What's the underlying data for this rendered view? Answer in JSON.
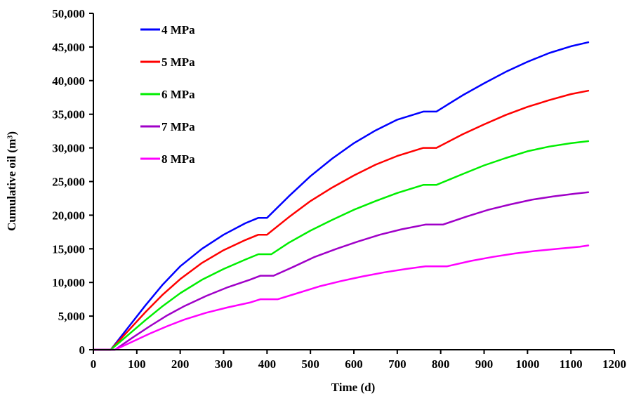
{
  "chart_data": {
    "type": "line",
    "title": "",
    "xlabel": "Time (d)",
    "ylabel": "Cumulative oil (m³)",
    "xlim": [
      0,
      1200
    ],
    "ylim": [
      0,
      50000
    ],
    "xticks": [
      0,
      100,
      200,
      300,
      400,
      500,
      600,
      700,
      800,
      900,
      1000,
      1100,
      1200
    ],
    "yticks": [
      0,
      5000,
      10000,
      15000,
      20000,
      25000,
      30000,
      35000,
      40000,
      45000,
      50000
    ],
    "xtick_labels": [
      "0",
      "100",
      "200",
      "300",
      "400",
      "500",
      "600",
      "700",
      "800",
      "900",
      "1000",
      "1100",
      "1200"
    ],
    "ytick_labels": [
      "0",
      "5,000",
      "10,000",
      "15,000",
      "20,000",
      "25,000",
      "30,000",
      "35,000",
      "40,000",
      "45,000",
      "50,000"
    ],
    "grid": false,
    "legend_position": "top-left",
    "series": [
      {
        "name": "4 MPa",
        "color": "#0000ff",
        "x": [
          0,
          30,
          40,
          80,
          120,
          160,
          200,
          250,
          300,
          350,
          380,
          400,
          450,
          500,
          550,
          600,
          650,
          700,
          760,
          790,
          850,
          900,
          950,
          1000,
          1050,
          1100,
          1140
        ],
        "y": [
          0,
          0,
          0,
          3300,
          6600,
          9700,
          12400,
          15000,
          17100,
          18800,
          19600,
          19600,
          22800,
          25800,
          28400,
          30700,
          32600,
          34200,
          35400,
          35400,
          37800,
          39600,
          41300,
          42800,
          44100,
          45100,
          45700
        ]
      },
      {
        "name": "5 MPa",
        "color": "#ff0000",
        "x": [
          0,
          30,
          40,
          80,
          120,
          160,
          200,
          250,
          300,
          350,
          380,
          400,
          450,
          500,
          550,
          600,
          650,
          700,
          760,
          790,
          850,
          900,
          950,
          1000,
          1050,
          1100,
          1140
        ],
        "y": [
          0,
          0,
          0,
          2800,
          5600,
          8200,
          10500,
          12900,
          14800,
          16300,
          17100,
          17100,
          19700,
          22100,
          24100,
          25900,
          27500,
          28800,
          30000,
          30000,
          32000,
          33500,
          34900,
          36100,
          37100,
          38000,
          38500
        ]
      },
      {
        "name": "6 MPa",
        "color": "#00ee00",
        "x": [
          0,
          30,
          40,
          80,
          120,
          160,
          200,
          250,
          300,
          350,
          380,
          410,
          450,
          500,
          550,
          600,
          650,
          700,
          760,
          790,
          850,
          900,
          950,
          1000,
          1050,
          1100,
          1140
        ],
        "y": [
          0,
          0,
          0,
          2200,
          4400,
          6500,
          8400,
          10400,
          12000,
          13400,
          14200,
          14200,
          15900,
          17700,
          19300,
          20800,
          22100,
          23300,
          24500,
          24500,
          26100,
          27400,
          28500,
          29500,
          30200,
          30700,
          31000
        ]
      },
      {
        "name": "7 MPa",
        "color": "#a000c8",
        "x": [
          0,
          30,
          50,
          90,
          130,
          170,
          210,
          260,
          310,
          360,
          385,
          415,
          460,
          510,
          560,
          610,
          660,
          710,
          765,
          805,
          860,
          910,
          960,
          1010,
          1060,
          1110,
          1140
        ],
        "y": [
          0,
          0,
          0,
          1800,
          3500,
          5100,
          6500,
          8000,
          9300,
          10400,
          11000,
          11000,
          12300,
          13800,
          15000,
          16100,
          17100,
          17900,
          18600,
          18600,
          19800,
          20800,
          21600,
          22300,
          22800,
          23200,
          23400
        ]
      },
      {
        "name": "8 MPa",
        "color": "#ff00ff",
        "x": [
          0,
          30,
          50,
          90,
          130,
          170,
          210,
          260,
          310,
          360,
          385,
          425,
          470,
          520,
          570,
          620,
          670,
          720,
          765,
          815,
          870,
          920,
          970,
          1020,
          1070,
          1120,
          1140
        ],
        "y": [
          0,
          0,
          0,
          1200,
          2400,
          3500,
          4500,
          5500,
          6300,
          7000,
          7500,
          7500,
          8400,
          9400,
          10200,
          10900,
          11500,
          12000,
          12400,
          12400,
          13200,
          13800,
          14300,
          14700,
          15000,
          15300,
          15500
        ]
      }
    ]
  }
}
